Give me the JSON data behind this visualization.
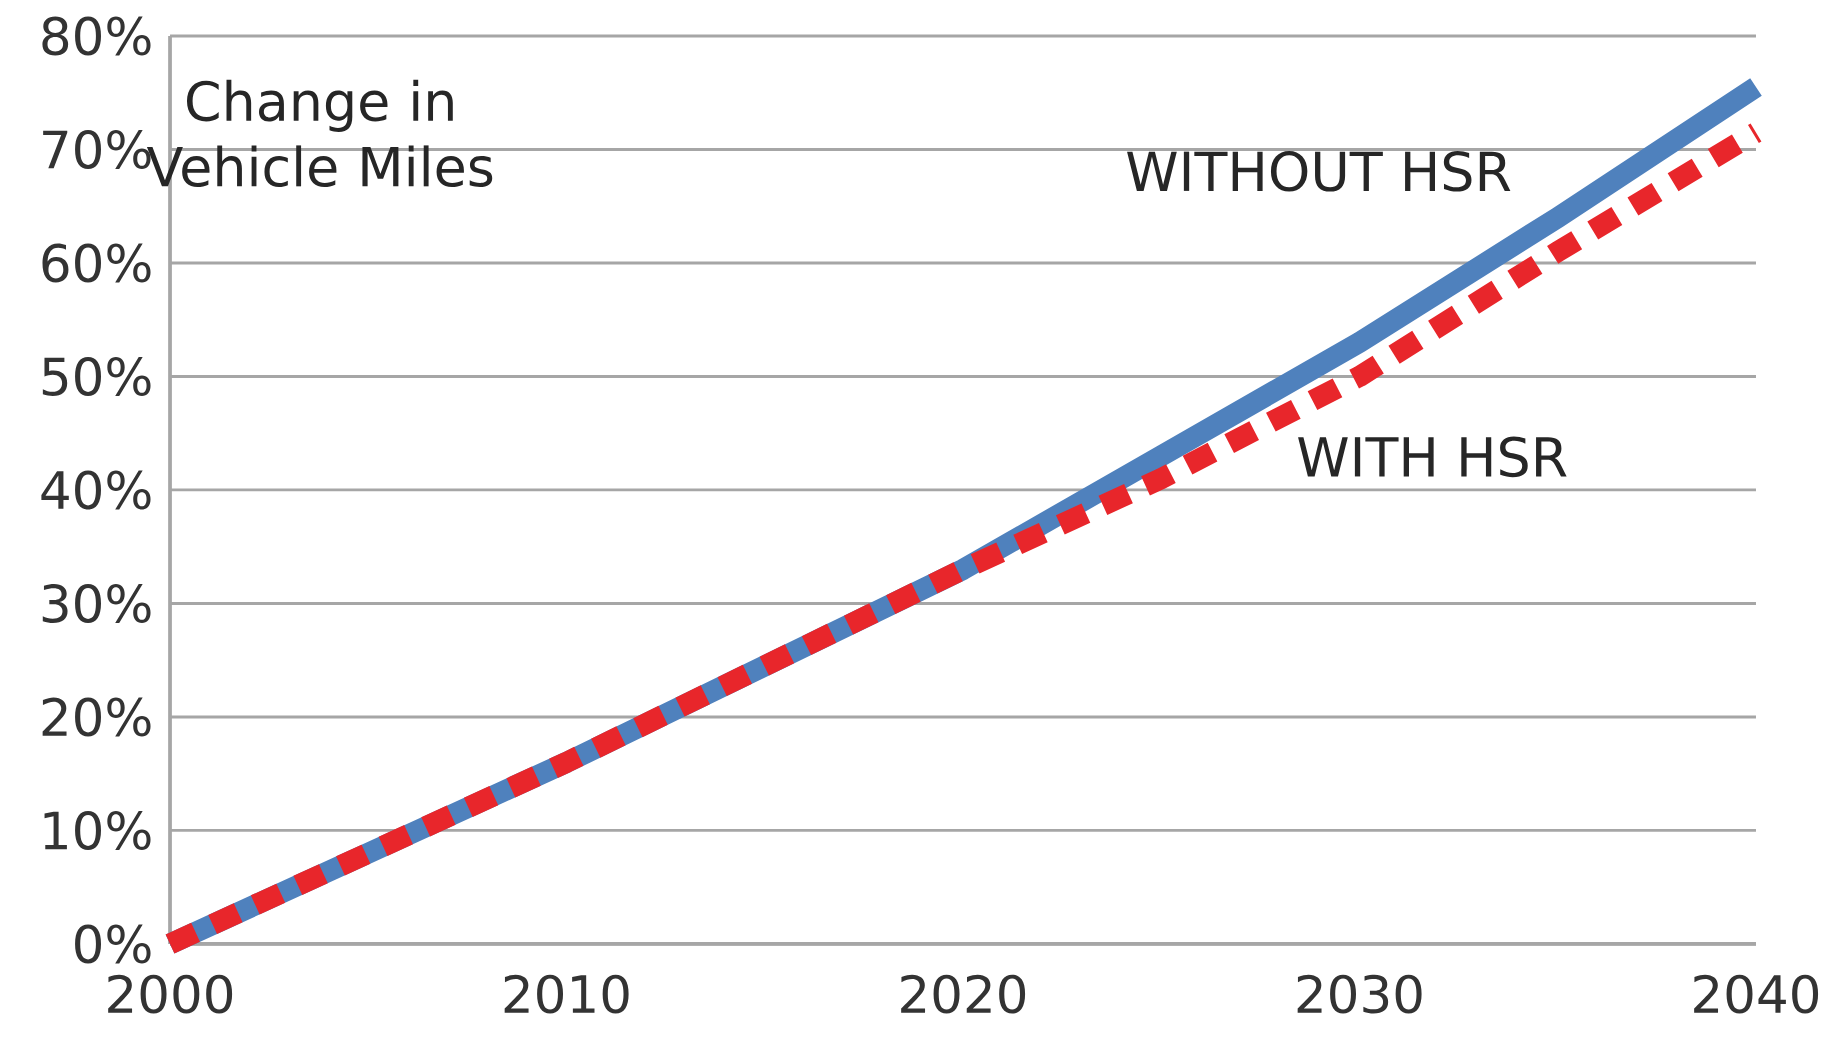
{
  "chart_data": {
    "type": "line",
    "x": [
      2000,
      2010,
      2020,
      2025,
      2030,
      2035,
      2040
    ],
    "series": [
      {
        "name": "WITHOUT HSR",
        "color": "#4f81bd",
        "line_style": "solid",
        "values": [
          0,
          16,
          33,
          43,
          53,
          64,
          75.5
        ]
      },
      {
        "name": "WITH HSR",
        "color": "#e8262b",
        "line_style": "dotted",
        "values": [
          0,
          16,
          33,
          41,
          50,
          61,
          71.5
        ]
      }
    ],
    "annotations": [
      "Change in Vehicle Miles"
    ],
    "xlim": [
      2000,
      2040
    ],
    "xticks": [
      2000,
      2010,
      2020,
      2030,
      2040
    ],
    "ylim": [
      0,
      80
    ],
    "yticks": [
      {
        "value": 0,
        "label": "0%"
      },
      {
        "value": 10,
        "label": "10%"
      },
      {
        "value": 20,
        "label": "20%"
      },
      {
        "value": 30,
        "label": "30%"
      },
      {
        "value": 40,
        "label": "40%"
      },
      {
        "value": 50,
        "label": "50%"
      },
      {
        "value": 60,
        "label": "60%"
      },
      {
        "value": 70,
        "label": "70%"
      },
      {
        "value": 80,
        "label": "80%"
      }
    ],
    "grid": "y",
    "legend": false
  }
}
